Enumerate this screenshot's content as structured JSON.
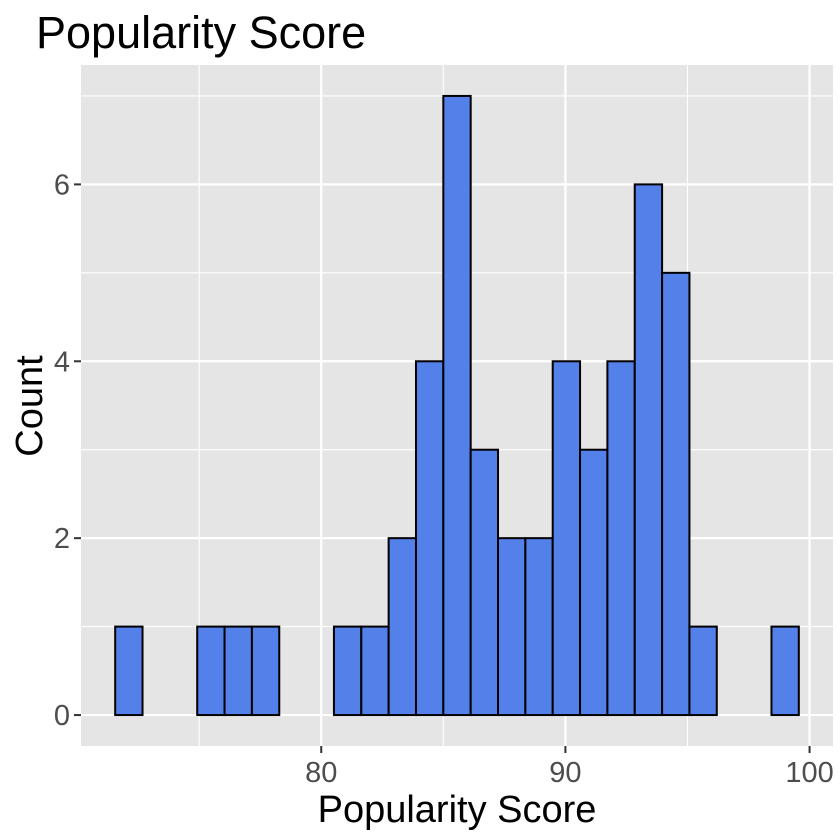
{
  "chart_data": {
    "type": "bar",
    "title": "Popularity Score",
    "xlabel": "Popularity Score",
    "ylabel": "Count",
    "bins": [
      {
        "x0": 71.56,
        "x1": 72.68,
        "count": 1
      },
      {
        "x0": 72.68,
        "x1": 73.8,
        "count": 0
      },
      {
        "x0": 73.8,
        "x1": 74.92,
        "count": 0
      },
      {
        "x0": 74.92,
        "x1": 76.04,
        "count": 1
      },
      {
        "x0": 76.04,
        "x1": 77.16,
        "count": 1
      },
      {
        "x0": 77.16,
        "x1": 78.28,
        "count": 1
      },
      {
        "x0": 78.28,
        "x1": 79.4,
        "count": 0
      },
      {
        "x0": 79.4,
        "x1": 80.52,
        "count": 0
      },
      {
        "x0": 80.52,
        "x1": 81.64,
        "count": 1
      },
      {
        "x0": 81.64,
        "x1": 82.76,
        "count": 1
      },
      {
        "x0": 82.76,
        "x1": 83.88,
        "count": 2
      },
      {
        "x0": 83.88,
        "x1": 85.0,
        "count": 4
      },
      {
        "x0": 85.0,
        "x1": 86.12,
        "count": 7
      },
      {
        "x0": 86.12,
        "x1": 87.24,
        "count": 3
      },
      {
        "x0": 87.24,
        "x1": 88.36,
        "count": 2
      },
      {
        "x0": 88.36,
        "x1": 89.48,
        "count": 2
      },
      {
        "x0": 89.48,
        "x1": 90.6,
        "count": 4
      },
      {
        "x0": 90.6,
        "x1": 91.72,
        "count": 3
      },
      {
        "x0": 91.72,
        "x1": 92.84,
        "count": 4
      },
      {
        "x0": 92.84,
        "x1": 93.96,
        "count": 6
      },
      {
        "x0": 93.96,
        "x1": 95.08,
        "count": 5
      },
      {
        "x0": 95.08,
        "x1": 96.2,
        "count": 1
      },
      {
        "x0": 96.2,
        "x1": 97.32,
        "count": 0
      },
      {
        "x0": 97.32,
        "x1": 98.44,
        "count": 0
      },
      {
        "x0": 98.44,
        "x1": 99.56,
        "count": 1
      }
    ],
    "xlim": [
      70.16,
      100.96
    ],
    "ylim": [
      -0.35,
      7.35
    ],
    "x_ticks": [
      80,
      90,
      100
    ],
    "x_minor_ticks": [
      75,
      85,
      95
    ],
    "y_ticks": [
      0,
      2,
      4,
      6
    ],
    "y_minor_ticks": [
      1,
      3,
      5,
      7
    ],
    "x_tick_labels": [
      "80",
      "90",
      "100"
    ],
    "y_tick_labels": [
      "0",
      "2",
      "4",
      "6"
    ],
    "grid": true,
    "bar_fill": "#5480ea",
    "bar_outline": "#000000",
    "panel_background": "#e5e5e5",
    "grid_color": "#ffffff"
  }
}
